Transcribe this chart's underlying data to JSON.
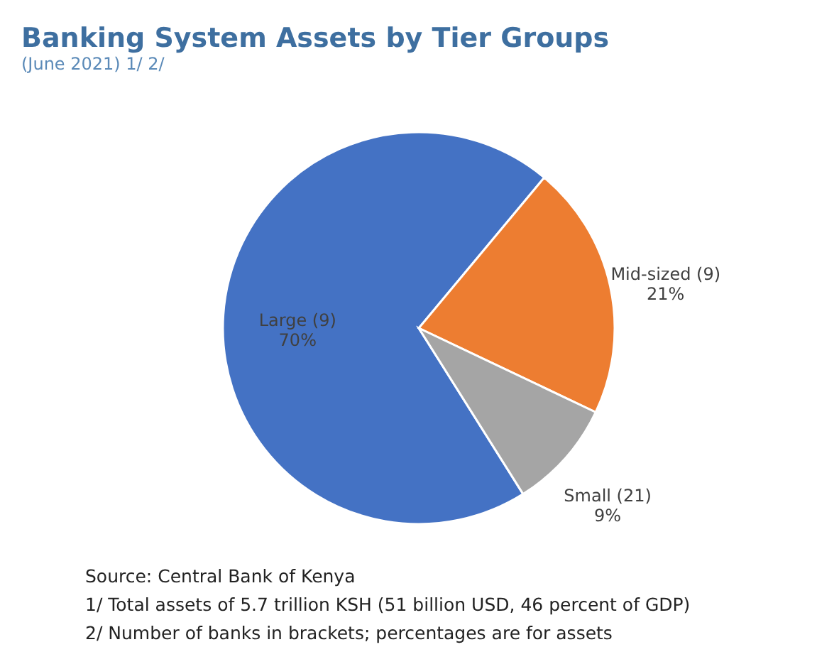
{
  "chart_data": {
    "type": "pie",
    "title": "Banking System Assets by Tier Groups",
    "subtitle": "(June 2021) 1/ 2/",
    "categories": [
      "Large (9)",
      "Mid-sized (9)",
      "Small (21)"
    ],
    "values": [
      70,
      21,
      9
    ],
    "value_labels": [
      "70%",
      "21%",
      "9%"
    ],
    "colors": [
      "#4472c4",
      "#ed7d31",
      "#a5a5a5"
    ],
    "legend": false,
    "annotations": [
      "Source: Central Bank of Kenya",
      "1/ Total assets of 5.7 trillion KSH (51 billion USD, 46 percent of GDP)",
      "2/ Number of banks in brackets; percentages are for assets"
    ]
  }
}
